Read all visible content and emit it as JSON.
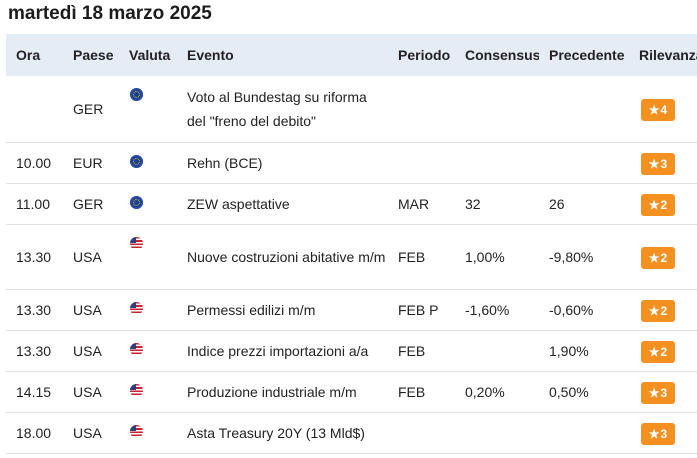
{
  "page_title": "martedì 18 marzo 2025",
  "columns": {
    "time": "Ora",
    "country": "Paese",
    "currency": "Valuta",
    "event": "Evento",
    "period": "Periodo",
    "consensus": "Consensus",
    "previous": "Precedente",
    "importance": "Rilevanza"
  },
  "rows": [
    {
      "time": "",
      "country": "GER",
      "flag": "eu-flag-icon",
      "event": "Voto al Bundestag su riforma del \"freno del debito\"",
      "period": "",
      "consensus": "",
      "previous": "",
      "importance": "4"
    },
    {
      "time": "10.00",
      "country": "EUR",
      "flag": "eu-flag-icon",
      "event": "Rehn (BCE)",
      "period": "",
      "consensus": "",
      "previous": "",
      "importance": "3"
    },
    {
      "time": "11.00",
      "country": "GER",
      "flag": "eu-flag-icon",
      "event": "ZEW aspettative",
      "period": "MAR",
      "consensus": "32",
      "previous": "26",
      "importance": "2"
    },
    {
      "time": "13.30",
      "country": "USA",
      "flag": "us-flag-icon",
      "event": "Nuove costruzioni abitative m/m",
      "period": "FEB",
      "consensus": "1,00%",
      "previous": "-9,80%",
      "importance": "2"
    },
    {
      "time": "13.30",
      "country": "USA",
      "flag": "us-flag-icon",
      "event": "Permessi edilizi m/m",
      "period": "FEB P",
      "consensus": "-1,60%",
      "previous": "-0,60%",
      "importance": "2"
    },
    {
      "time": "13.30",
      "country": "USA",
      "flag": "us-flag-icon",
      "event": "Indice prezzi importazioni a/a",
      "period": "FEB",
      "consensus": "",
      "previous": "1,90%",
      "importance": "2"
    },
    {
      "time": "14.15",
      "country": "USA",
      "flag": "us-flag-icon",
      "event": "Produzione industriale m/m",
      "period": "FEB",
      "consensus": "0,20%",
      "previous": "0,50%",
      "importance": "3"
    },
    {
      "time": "18.00",
      "country": "USA",
      "flag": "us-flag-icon",
      "event": "Asta Treasury 20Y (13 Mld$)",
      "period": "",
      "consensus": "",
      "previous": "",
      "importance": "3"
    }
  ],
  "colors": {
    "header_bg": "#e6ecf6",
    "badge_bg": "#f39020",
    "row_border": "#e2e2e2"
  }
}
